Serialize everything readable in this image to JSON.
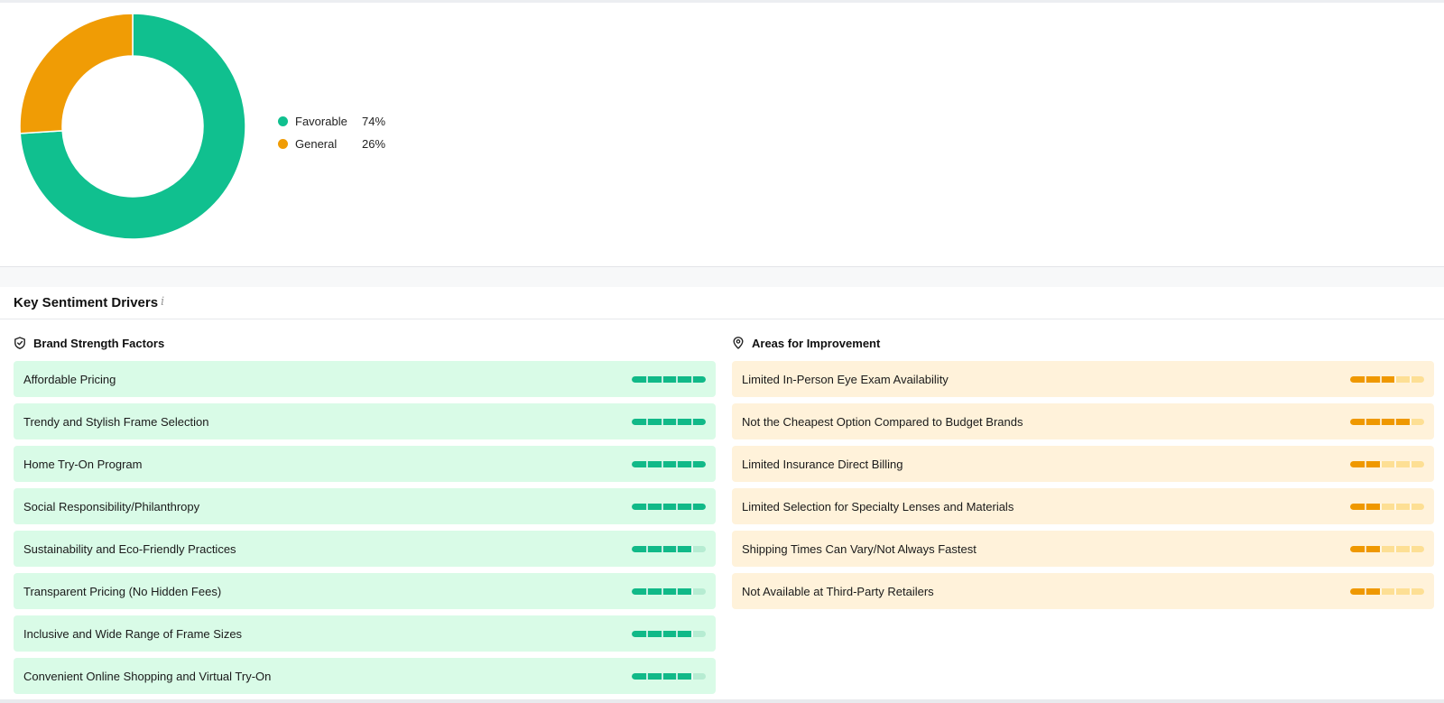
{
  "sentiment_chart": {
    "colors": {
      "favorable": "#10c08f",
      "general": "#f09c05"
    },
    "legend": [
      {
        "label": "Favorable",
        "value": "74%",
        "fraction": 0.74,
        "color": "#10c08f"
      },
      {
        "label": "General",
        "value": "26%",
        "fraction": 0.26,
        "color": "#f09c05"
      }
    ]
  },
  "drivers": {
    "title": "Key Sentiment Drivers",
    "info_icon": "i",
    "strengths": {
      "title": "Brand Strength Factors",
      "icon": "shield-check-icon",
      "items": [
        {
          "label": "Affordable Pricing",
          "score": 1.0
        },
        {
          "label": "Trendy and Stylish Frame Selection",
          "score": 1.0
        },
        {
          "label": "Home Try-On Program",
          "score": 1.0
        },
        {
          "label": "Social Responsibility/Philanthropy",
          "score": 1.0
        },
        {
          "label": "Sustainability and Eco-Friendly Practices",
          "score": 0.8
        },
        {
          "label": "Transparent Pricing (No Hidden Fees)",
          "score": 0.8
        },
        {
          "label": "Inclusive and Wide Range of Frame Sizes",
          "score": 0.8
        },
        {
          "label": "Convenient Online Shopping and Virtual Try-On",
          "score": 0.8
        }
      ]
    },
    "improvements": {
      "title": "Areas for Improvement",
      "icon": "location-pin-icon",
      "items": [
        {
          "label": "Limited In-Person Eye Exam Availability",
          "score": 0.6
        },
        {
          "label": "Not the Cheapest Option Compared to Budget Brands",
          "score": 0.8
        },
        {
          "label": "Limited Insurance Direct Billing",
          "score": 0.4
        },
        {
          "label": "Limited Selection for Specialty Lenses and Materials",
          "score": 0.4
        },
        {
          "label": "Shipping Times Can Vary/Not Always Fastest",
          "score": 0.4
        },
        {
          "label": "Not Available at Third-Party Retailers",
          "score": 0.4
        }
      ]
    }
  }
}
